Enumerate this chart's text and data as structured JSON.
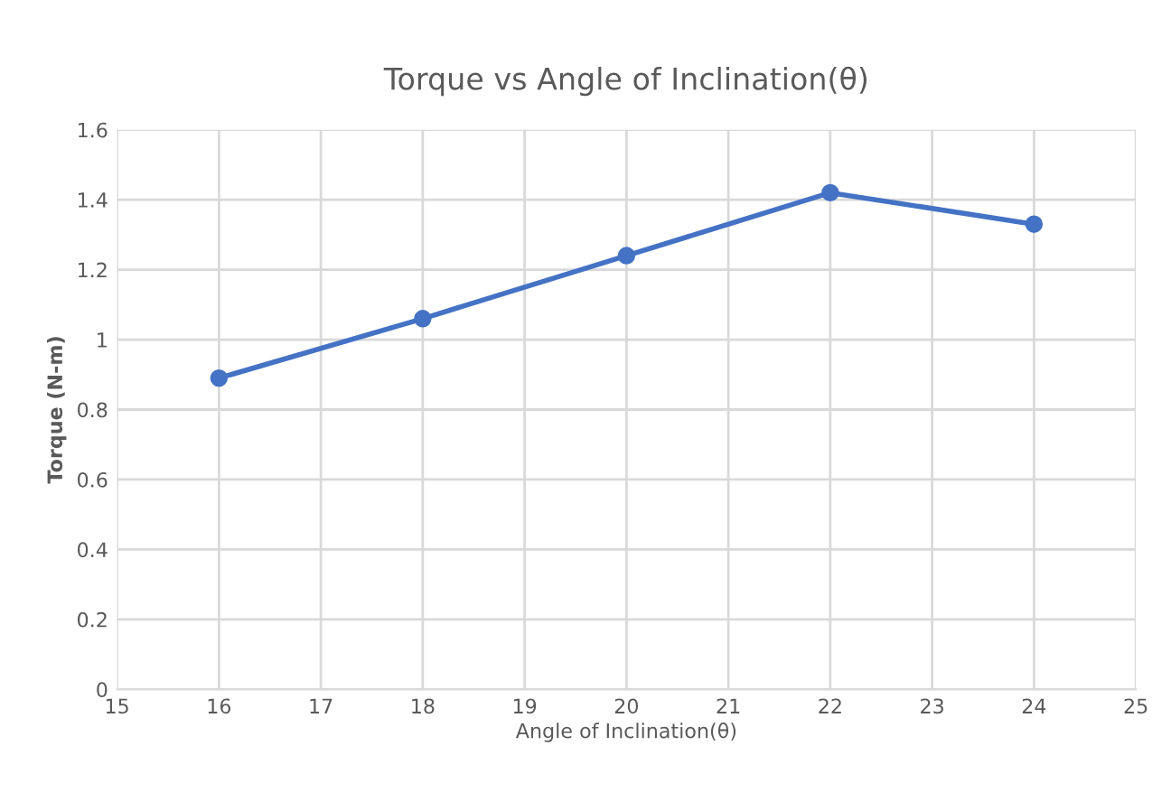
{
  "chart_data": {
    "type": "line",
    "title": "Torque vs Angle of Inclination(θ)",
    "xlabel": "Angle of Inclination(θ)",
    "ylabel": "Torque (N-m)",
    "x": [
      16,
      18,
      20,
      22,
      24
    ],
    "series": [
      {
        "color": "#4472c4",
        "values": [
          0.89,
          1.06,
          1.24,
          1.42,
          1.33
        ]
      }
    ],
    "xlim": [
      15,
      25
    ],
    "xticks": [
      15,
      16,
      17,
      18,
      19,
      20,
      21,
      22,
      23,
      24,
      25
    ],
    "ylim": [
      0,
      1.6
    ],
    "yticks": [
      0,
      0.2,
      0.4,
      0.6,
      0.8,
      1,
      1.2,
      1.4,
      1.6
    ],
    "grid": true,
    "marker": "circle",
    "line_style": "solid"
  }
}
